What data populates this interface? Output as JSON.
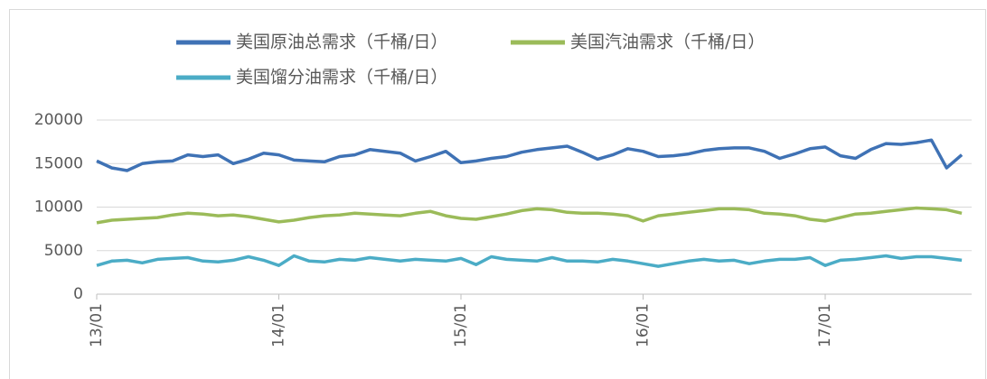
{
  "chart_data": {
    "type": "line",
    "categories": [
      "13/01",
      null,
      null,
      null,
      null,
      null,
      null,
      null,
      null,
      null,
      null,
      null,
      "14/01",
      null,
      null,
      null,
      null,
      null,
      null,
      null,
      null,
      null,
      null,
      null,
      "15/01",
      null,
      null,
      null,
      null,
      null,
      null,
      null,
      null,
      null,
      null,
      null,
      "16/01",
      null,
      null,
      null,
      null,
      null,
      null,
      null,
      null,
      null,
      null,
      null,
      "17/01",
      null,
      null,
      null,
      null,
      null,
      null,
      null,
      null,
      null
    ],
    "series": [
      {
        "name": "美国原油总需求（千桶/日）",
        "color": "#3f72b5",
        "values": [
          15300,
          14500,
          14200,
          15000,
          15200,
          15300,
          16000,
          15800,
          16000,
          15000,
          15500,
          16200,
          16000,
          15400,
          15300,
          15200,
          15800,
          16000,
          16600,
          16400,
          16200,
          15300,
          15800,
          16400,
          15100,
          15300,
          15600,
          15800,
          16300,
          16600,
          16800,
          17000,
          16300,
          15500,
          16000,
          16700,
          16400,
          15800,
          15900,
          16100,
          16500,
          16700,
          16800,
          16800,
          16400,
          15600,
          16100,
          16700,
          16900,
          15900,
          15600,
          16600,
          17300,
          17200,
          17400,
          17700,
          14500,
          16000
        ]
      },
      {
        "name": "美国汽油需求（千桶/日）",
        "color": "#9bbb59",
        "values": [
          8200,
          8500,
          8600,
          8700,
          8800,
          9100,
          9300,
          9200,
          9000,
          9100,
          8900,
          8600,
          8300,
          8500,
          8800,
          9000,
          9100,
          9300,
          9200,
          9100,
          9000,
          9300,
          9500,
          9000,
          8700,
          8600,
          8900,
          9200,
          9600,
          9800,
          9700,
          9400,
          9300,
          9300,
          9200,
          9000,
          8400,
          9000,
          9200,
          9400,
          9600,
          9800,
          9800,
          9700,
          9300,
          9200,
          9000,
          8600,
          8400,
          8800,
          9200,
          9300,
          9500,
          9700,
          9900,
          9800,
          9700,
          9300
        ]
      },
      {
        "name": "美国馏分油需求（千桶/日）",
        "color": "#4bacc6",
        "values": [
          3300,
          3800,
          3900,
          3600,
          4000,
          4100,
          4200,
          3800,
          3700,
          3900,
          4300,
          3900,
          3300,
          4400,
          3800,
          3700,
          4000,
          3900,
          4200,
          4000,
          3800,
          4000,
          3900,
          3800,
          4100,
          3400,
          4300,
          4000,
          3900,
          3800,
          4200,
          3800,
          3800,
          3700,
          4000,
          3800,
          3500,
          3200,
          3500,
          3800,
          4000,
          3800,
          3900,
          3500,
          3800,
          4000,
          4000,
          4200,
          3300,
          3900,
          4000,
          4200,
          4400,
          4100,
          4300,
          4300,
          4100,
          3900
        ]
      }
    ],
    "ylim": [
      0,
      20000
    ],
    "yticks": [
      0,
      5000,
      10000,
      15000,
      20000
    ],
    "grid": true
  }
}
